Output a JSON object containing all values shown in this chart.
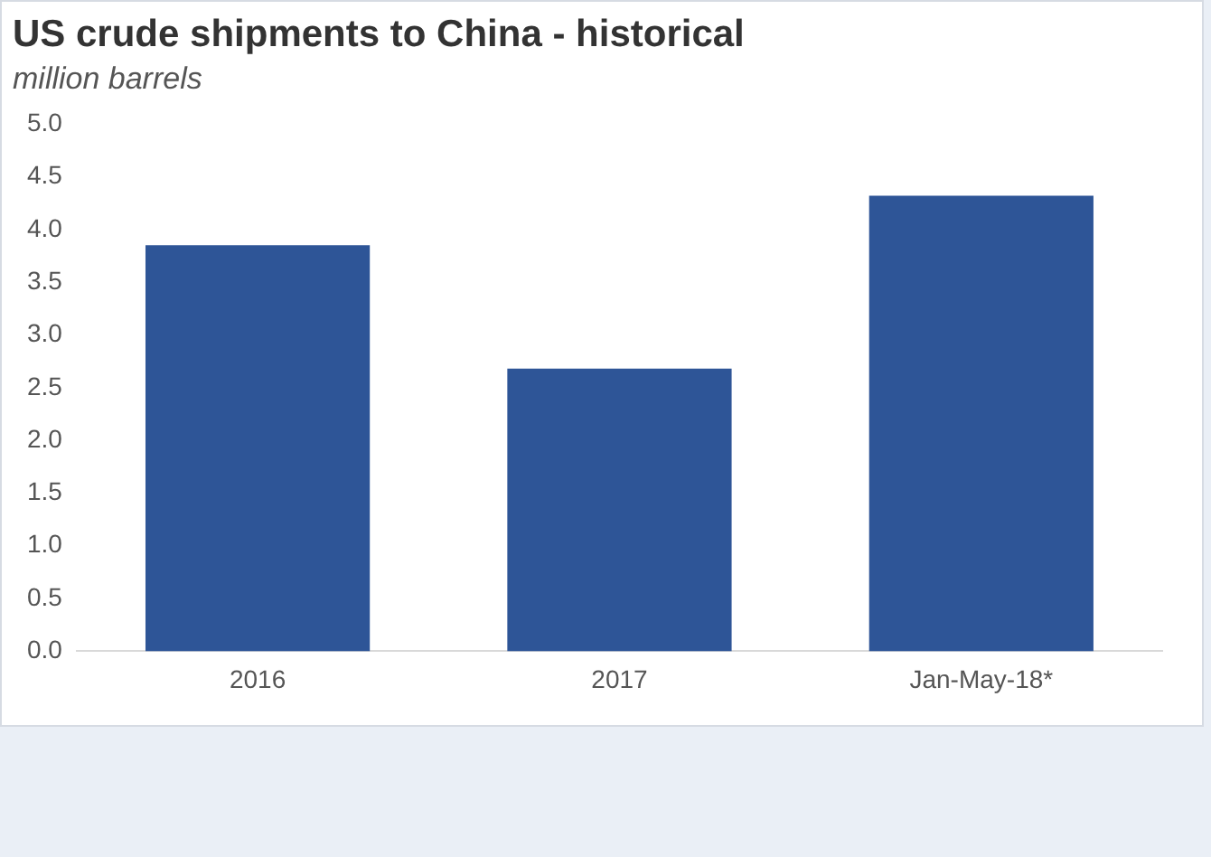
{
  "chart_data": {
    "type": "bar",
    "title": "US crude shipments to China - historical",
    "subtitle": "million barrels",
    "categories": [
      "2016",
      "2017",
      "Jan-May-18*"
    ],
    "values": [
      3.85,
      2.68,
      4.32
    ],
    "color": "#2e5597",
    "ylim": [
      0,
      5
    ],
    "yticks": [
      {
        "value": 0,
        "label": "0.0"
      },
      0.5,
      {
        "value": 1,
        "label": "1.0"
      },
      1.5,
      {
        "value": 2,
        "label": "2.0"
      },
      2.5,
      {
        "value": 3,
        "label": "3.0"
      },
      3.5,
      {
        "value": 4,
        "label": "4.0"
      },
      4.5,
      {
        "value": 5,
        "label": "5.0"
      }
    ],
    "grid": false,
    "legend": false
  }
}
